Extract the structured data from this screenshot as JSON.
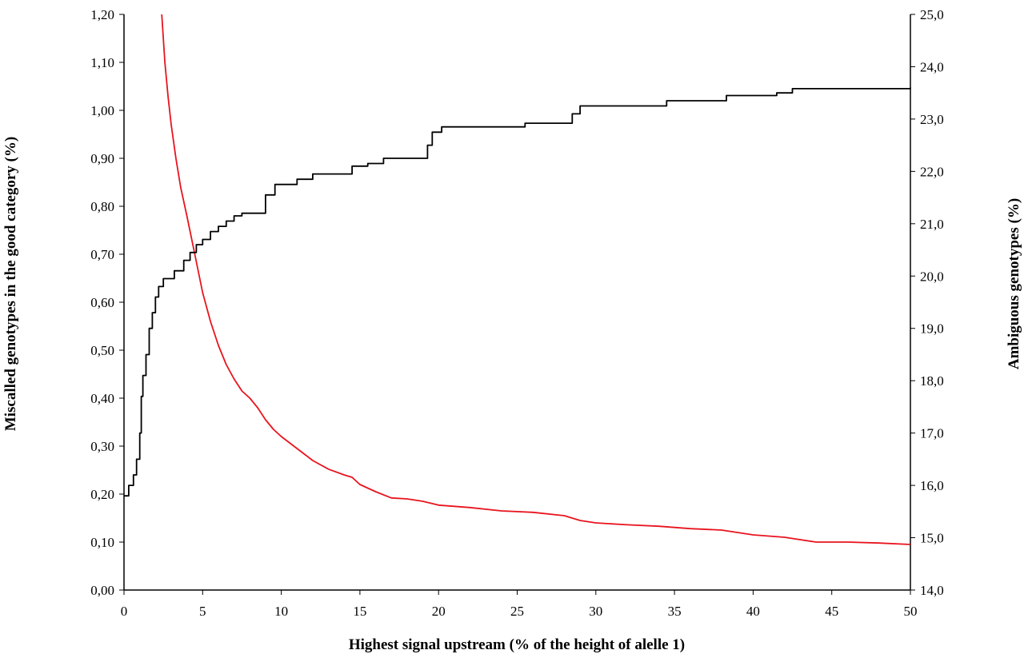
{
  "chart_data": {
    "type": "line",
    "title": "",
    "xlabel": "Highest signal upstream (% of the height of alelle 1)",
    "ylabel_left": "Miscalled genotypes in the good category (%)",
    "ylabel_right": "Ambiguous genotypes (%)",
    "xlim": [
      0,
      50
    ],
    "ylim_left": [
      0,
      1.2
    ],
    "ylim_right": [
      14,
      25
    ],
    "x_ticks": [
      "0",
      "5",
      "10",
      "15",
      "20",
      "25",
      "30",
      "35",
      "40",
      "45",
      "50"
    ],
    "y_left_ticks": [
      "0,00",
      "0,10",
      "0,20",
      "0,30",
      "0,40",
      "0,50",
      "0,60",
      "0,70",
      "0,80",
      "0,90",
      "1,00",
      "1,10",
      "1,20"
    ],
    "y_right_ticks": [
      "14,0",
      "15,0",
      "16,0",
      "17,0",
      "18,0",
      "19,0",
      "20,0",
      "21,0",
      "22,0",
      "23,0",
      "24,0",
      "25,0"
    ],
    "grid": false,
    "legend": "none",
    "series": [
      {
        "axis": "left",
        "color": "#e8141e",
        "x": [
          2.4,
          2.6,
          2.8,
          3.0,
          3.3,
          3.6,
          4.0,
          4.5,
          5.0,
          5.5,
          6.0,
          6.5,
          7.0,
          7.5,
          8.0,
          8.5,
          9.0,
          9.5,
          10.0,
          11.0,
          12.0,
          13.0,
          14.0,
          14.5,
          15.0,
          16.0,
          17.0,
          18.0,
          19.0,
          20.0,
          22.0,
          24.0,
          26.0,
          28.0,
          29.0,
          30.0,
          32.0,
          34.0,
          36.0,
          38.0,
          39.0,
          40.0,
          42.0,
          44.0,
          46.0,
          48.0,
          50.0
        ],
        "y": [
          1.2,
          1.1,
          1.03,
          0.97,
          0.9,
          0.84,
          0.78,
          0.7,
          0.62,
          0.56,
          0.51,
          0.47,
          0.44,
          0.415,
          0.4,
          0.38,
          0.355,
          0.335,
          0.32,
          0.295,
          0.27,
          0.252,
          0.24,
          0.235,
          0.22,
          0.205,
          0.192,
          0.19,
          0.185,
          0.177,
          0.172,
          0.165,
          0.162,
          0.155,
          0.145,
          0.14,
          0.136,
          0.133,
          0.128,
          0.125,
          0.12,
          0.115,
          0.11,
          0.1,
          0.1,
          0.098,
          0.095
        ]
      },
      {
        "axis": "right",
        "color": "#000000",
        "x": [
          0.0,
          0.3,
          0.6,
          0.8,
          1.0,
          1.1,
          1.2,
          1.4,
          1.6,
          1.8,
          2.0,
          2.2,
          2.5,
          3.2,
          3.8,
          4.2,
          4.6,
          5.0,
          5.5,
          6.0,
          6.5,
          7.0,
          7.5,
          8.5,
          9.0,
          9.6,
          11.0,
          12.0,
          14.0,
          14.5,
          15.5,
          16.5,
          17.5,
          18.8,
          19.3,
          19.6,
          20.2,
          24.0,
          25.5,
          28.0,
          28.5,
          29.0,
          34.0,
          34.5,
          38.0,
          38.3,
          41.0,
          41.5,
          42.5,
          50.0
        ],
        "y": [
          15.8,
          16.0,
          16.2,
          16.5,
          17.0,
          17.7,
          18.1,
          18.5,
          19.0,
          19.3,
          19.6,
          19.8,
          19.95,
          20.1,
          20.3,
          20.45,
          20.6,
          20.7,
          20.85,
          20.95,
          21.05,
          21.15,
          21.2,
          21.2,
          21.55,
          21.75,
          21.85,
          21.95,
          21.95,
          22.1,
          22.15,
          22.25,
          22.25,
          22.25,
          22.5,
          22.75,
          22.85,
          22.85,
          22.92,
          22.92,
          23.1,
          23.25,
          23.25,
          23.35,
          23.35,
          23.45,
          23.45,
          23.5,
          23.58,
          23.6
        ]
      }
    ]
  }
}
